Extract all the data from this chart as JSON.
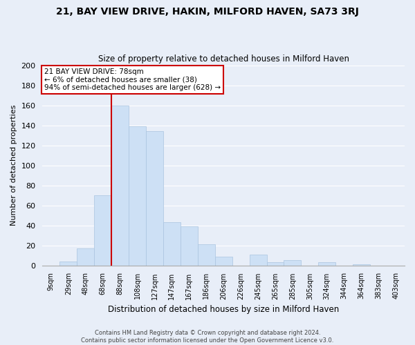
{
  "title": "21, BAY VIEW DRIVE, HAKIN, MILFORD HAVEN, SA73 3RJ",
  "subtitle": "Size of property relative to detached houses in Milford Haven",
  "xlabel": "Distribution of detached houses by size in Milford Haven",
  "ylabel": "Number of detached properties",
  "bar_labels": [
    "9sqm",
    "29sqm",
    "48sqm",
    "68sqm",
    "88sqm",
    "108sqm",
    "127sqm",
    "147sqm",
    "167sqm",
    "186sqm",
    "206sqm",
    "226sqm",
    "245sqm",
    "265sqm",
    "285sqm",
    "305sqm",
    "324sqm",
    "344sqm",
    "364sqm",
    "383sqm",
    "403sqm"
  ],
  "bar_values": [
    0,
    4,
    17,
    70,
    160,
    139,
    134,
    43,
    39,
    21,
    9,
    0,
    11,
    3,
    5,
    0,
    3,
    0,
    1,
    0,
    0
  ],
  "bar_color": "#cde0f5",
  "bar_edge_color": "#aac4e0",
  "vline_color": "#cc0000",
  "annotation_title": "21 BAY VIEW DRIVE: 78sqm",
  "annotation_line1": "← 6% of detached houses are smaller (38)",
  "annotation_line2": "94% of semi-detached houses are larger (628) →",
  "annotation_box_color": "#ffffff",
  "annotation_box_edge": "#cc0000",
  "ylim": [
    0,
    200
  ],
  "yticks": [
    0,
    20,
    40,
    60,
    80,
    100,
    120,
    140,
    160,
    180,
    200
  ],
  "footer1": "Contains HM Land Registry data © Crown copyright and database right 2024.",
  "footer2": "Contains public sector information licensed under the Open Government Licence v3.0.",
  "background_color": "#e8eef8",
  "plot_bg_color": "#e8eef8",
  "grid_color": "#ffffff"
}
